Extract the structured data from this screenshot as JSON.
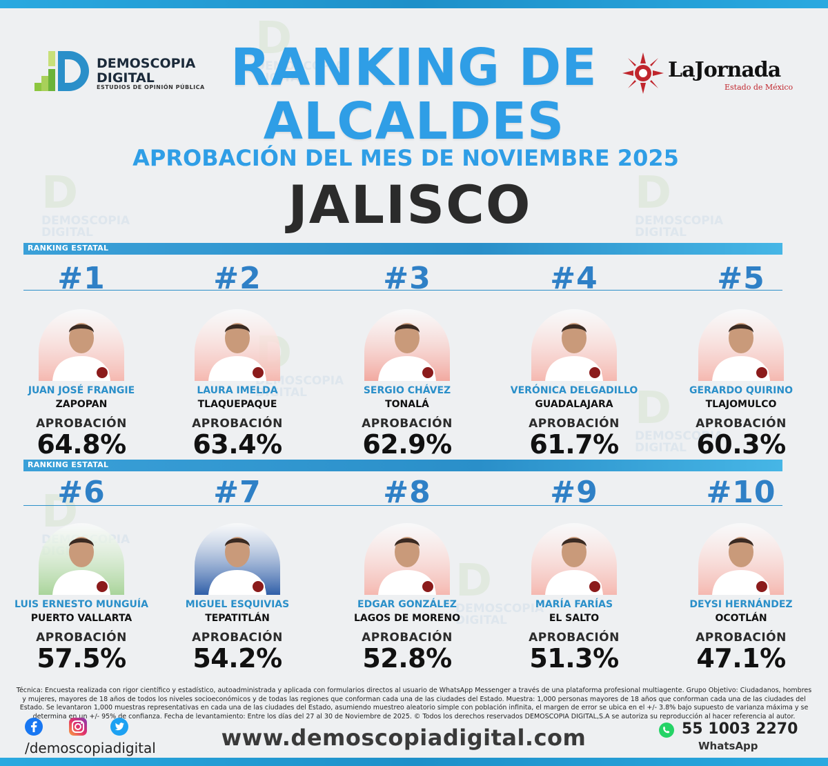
{
  "header": {
    "title_line1": "RANKING DE",
    "title_line2": "ALCALDES",
    "subtitle": "APROBACIÓN DEL MES DE NOVIEMBRE 2025",
    "state": "JALISCO"
  },
  "brand": {
    "name_line1": "DEMOSCOPIA",
    "name_line2": "DIGITAL",
    "tagline": "ESTUDIOS DE OPINIÓN PÚBLICA"
  },
  "partner": {
    "name": "LaJornada",
    "region": "Estado de México"
  },
  "section_label": "RANKING ESTATAL",
  "approval_label": "APROBACIÓN",
  "rankings": [
    {
      "rank": "#1",
      "name": "JUAN JOSÉ FRANGIE",
      "city": "ZAPOPAN",
      "approval": "64.8%",
      "bg": "#f5b8b0"
    },
    {
      "rank": "#2",
      "name": "LAURA IMELDA",
      "city": "TLAQUEPAQUE",
      "approval": "63.4%",
      "bg": "#f5b8b0"
    },
    {
      "rank": "#3",
      "name": "SERGIO CHÁVEZ",
      "city": "TONALÁ",
      "approval": "62.9%",
      "bg": "#f2a9a0"
    },
    {
      "rank": "#4",
      "name": "VERÓNICA DELGADILLO",
      "city": "GUADALAJARA",
      "approval": "61.7%",
      "bg": "#f5b8b0"
    },
    {
      "rank": "#5",
      "name": "GERARDO QUIRINO",
      "city": "TLAJOMULCO",
      "approval": "60.3%",
      "bg": "#f5b8b0"
    },
    {
      "rank": "#6",
      "name": "LUIS ERNESTO MUNGUÍA",
      "city": "PUERTO VALLARTA",
      "approval": "57.5%",
      "bg": "#a9d49a"
    },
    {
      "rank": "#7",
      "name": "MIGUEL ESQUIVIAS",
      "city": "TEPATITLÁN",
      "approval": "54.2%",
      "bg": "#2f5ea8"
    },
    {
      "rank": "#8",
      "name": "EDGAR GONZÁLEZ",
      "city": "LAGOS DE MORENO",
      "approval": "52.8%",
      "bg": "#f5b8b0"
    },
    {
      "rank": "#9",
      "name": "MARÍA FARÍAS",
      "city": "EL SALTO",
      "approval": "51.3%",
      "bg": "#f5b8b0"
    },
    {
      "rank": "#10",
      "name": "DEYSI HERNÁNDEZ",
      "city": "OCOTLÁN",
      "approval": "47.1%",
      "bg": "#f5b8b0"
    }
  ],
  "methodology": "Técnica: Encuesta realizada con rigor científico y estadístico, autoadministrada y aplicada con formularios directos al usuario de WhatsApp Messenger a través de una plataforma profesional multiagente. Grupo Objetivo: Ciudadanos, hombres y mujeres, mayores de 18 años de todos los niveles socioeconómicos y de todas las regiones que conforman cada una de las ciudades del Estado. Muestra: 1,000 personas mayores de 18 años que conforman cada una de las ciudades del Estado. Se levantaron 1,000 muestras representativas en cada una de las ciudades del Estado, asumiendo muestreo aleatorio simple con población infinita, el margen de error se ubica en el +/- 3.8% bajo supuesto de varianza máxima y se determina en un +/- 95% de confianza. Fecha de levantamiento: Entre los días del 27 al 30 de Noviembre de 2025. © Todos los derechos reservados DEMOSCOPIA DIGITAL,S.A se autoriza su reproducción al hacer referencia al autor.",
  "footer": {
    "social_handle": "/demoscopiadigital",
    "website": "www.demoscopiadigital.com",
    "phone": "55 1003 2270",
    "phone_label": "WhatsApp"
  },
  "colors": {
    "title_blue": "#2f9ee6",
    "rank_blue": "#2f80c6",
    "bar_blue": "#2a8fc9"
  }
}
